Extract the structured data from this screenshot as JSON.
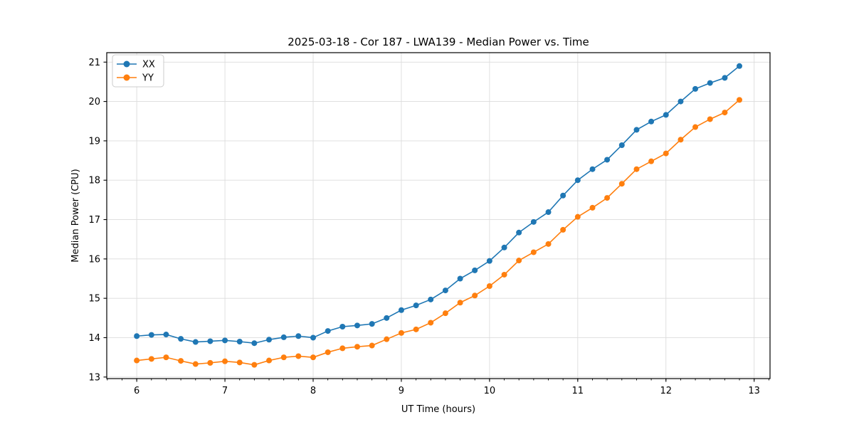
{
  "chart_data": {
    "type": "line",
    "title": "2025-03-18 - Cor 187 - LWA139 - Median Power vs. Time",
    "xlabel": "UT Time (hours)",
    "ylabel": "Median Power (CPU)",
    "xlim": [
      5.66,
      13.18
    ],
    "ylim": [
      12.96,
      21.24
    ],
    "xticks": [
      6,
      7,
      8,
      9,
      10,
      11,
      12,
      13
    ],
    "yticks": [
      13,
      14,
      15,
      16,
      17,
      18,
      19,
      20,
      21
    ],
    "x_minor_step": 0.166667,
    "grid": true,
    "grid_color": "#dcdcdc",
    "legend_position": "upper-left",
    "x": [
      6.0,
      6.167,
      6.333,
      6.5,
      6.667,
      6.833,
      7.0,
      7.167,
      7.333,
      7.5,
      7.667,
      7.833,
      8.0,
      8.167,
      8.333,
      8.5,
      8.667,
      8.833,
      9.0,
      9.167,
      9.333,
      9.5,
      9.667,
      9.833,
      10.0,
      10.167,
      10.333,
      10.5,
      10.667,
      10.833,
      11.0,
      11.167,
      11.333,
      11.5,
      11.667,
      11.833,
      12.0,
      12.167,
      12.333,
      12.5,
      12.667,
      12.833
    ],
    "series": [
      {
        "name": "XX",
        "color": "#1f77b4",
        "values": [
          14.04,
          14.07,
          14.08,
          13.97,
          13.89,
          13.91,
          13.93,
          13.9,
          13.86,
          13.95,
          14.01,
          14.04,
          14.0,
          14.17,
          14.28,
          14.31,
          14.35,
          14.5,
          14.7,
          14.82,
          14.97,
          15.2,
          15.5,
          15.71,
          15.95,
          16.29,
          16.67,
          16.94,
          17.19,
          17.61,
          18.0,
          18.28,
          18.52,
          18.89,
          19.28,
          19.49,
          19.66,
          20.0,
          20.32,
          20.47,
          20.6,
          20.9
        ]
      },
      {
        "name": "YY",
        "color": "#ff7f0e",
        "values": [
          13.42,
          13.46,
          13.5,
          13.41,
          13.33,
          13.36,
          13.4,
          13.37,
          13.31,
          13.42,
          13.5,
          13.53,
          13.5,
          13.63,
          13.73,
          13.77,
          13.8,
          13.96,
          14.12,
          14.21,
          14.38,
          14.62,
          14.89,
          15.07,
          15.31,
          15.6,
          15.96,
          16.17,
          16.38,
          16.74,
          17.07,
          17.3,
          17.55,
          17.91,
          18.28,
          18.48,
          18.68,
          19.03,
          19.35,
          19.55,
          19.72,
          20.04
        ]
      }
    ]
  }
}
